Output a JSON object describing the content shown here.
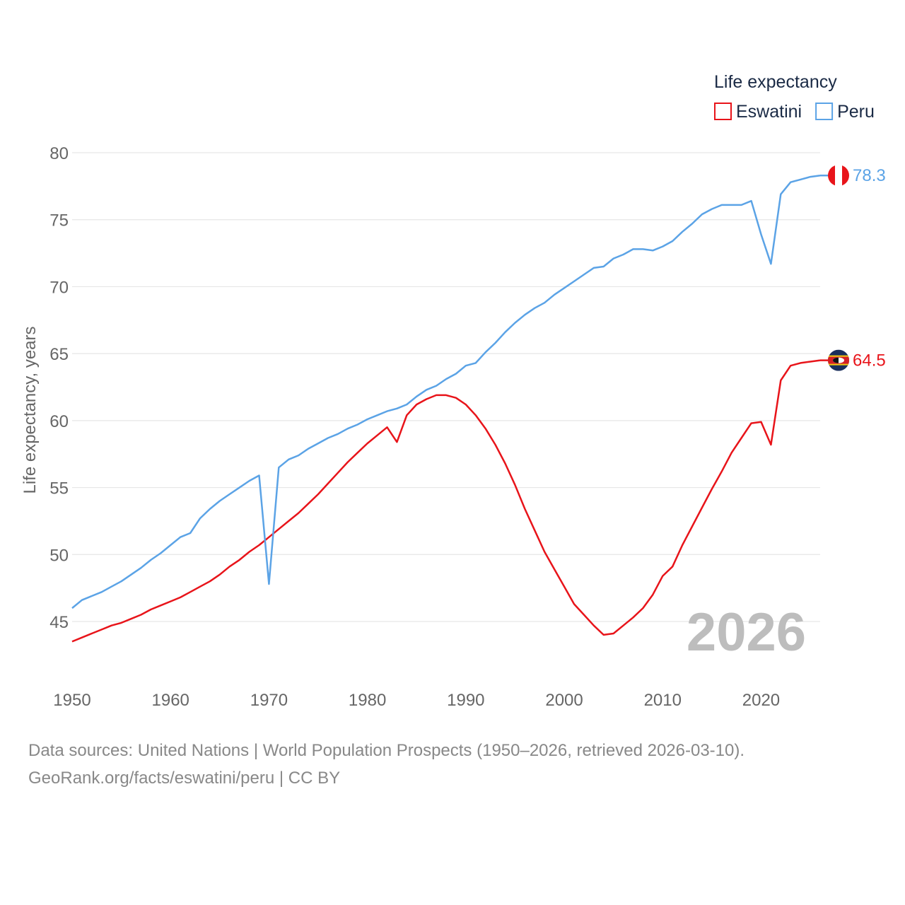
{
  "chart_data": {
    "type": "line",
    "legend_title": "Life expectancy",
    "ylabel": "Life expectancy, years",
    "xlabel": "",
    "ylim": [
      42,
      82
    ],
    "xlim": [
      1950,
      2026
    ],
    "y_ticks": [
      45,
      50,
      55,
      60,
      65,
      70,
      75,
      80
    ],
    "x_ticks": [
      1950,
      1960,
      1970,
      1980,
      1990,
      2000,
      2010,
      2020
    ],
    "grid": true,
    "legend_position": "top-right",
    "year_watermark": "2026",
    "x": [
      1950,
      1951,
      1952,
      1953,
      1954,
      1955,
      1956,
      1957,
      1958,
      1959,
      1960,
      1961,
      1962,
      1963,
      1964,
      1965,
      1966,
      1967,
      1968,
      1969,
      1970,
      1971,
      1972,
      1973,
      1974,
      1975,
      1976,
      1977,
      1978,
      1979,
      1980,
      1981,
      1982,
      1983,
      1984,
      1985,
      1986,
      1987,
      1988,
      1989,
      1990,
      1991,
      1992,
      1993,
      1994,
      1995,
      1996,
      1997,
      1998,
      1999,
      2000,
      2001,
      2002,
      2003,
      2004,
      2005,
      2006,
      2007,
      2008,
      2009,
      2010,
      2011,
      2012,
      2013,
      2014,
      2015,
      2016,
      2017,
      2018,
      2019,
      2020,
      2021,
      2022,
      2023,
      2024,
      2025,
      2026
    ],
    "series": [
      {
        "name": "Eswatini",
        "color": "#e8141a",
        "end_label": "64.5",
        "flag": "eswatini-flag-icon",
        "values": [
          43.5,
          43.8,
          44.1,
          44.4,
          44.7,
          44.9,
          45.2,
          45.5,
          45.9,
          46.2,
          46.5,
          46.8,
          47.2,
          47.6,
          48.0,
          48.5,
          49.1,
          49.6,
          50.2,
          50.7,
          51.3,
          51.9,
          52.5,
          53.1,
          53.8,
          54.5,
          55.3,
          56.1,
          56.9,
          57.6,
          58.3,
          58.9,
          59.5,
          58.4,
          60.4,
          61.2,
          61.6,
          61.9,
          61.9,
          61.7,
          61.2,
          60.4,
          59.4,
          58.2,
          56.8,
          55.2,
          53.4,
          51.8,
          50.2,
          48.9,
          47.6,
          46.3,
          45.5,
          44.7,
          44.0,
          44.1,
          44.7,
          45.3,
          46.0,
          47.0,
          48.4,
          49.1,
          50.7,
          52.1,
          53.5,
          54.9,
          56.2,
          57.6,
          58.7,
          59.8,
          59.9,
          58.2,
          63.0,
          64.1,
          64.3,
          64.4,
          64.5
        ]
      },
      {
        "name": "Peru",
        "color": "#5ba3e6",
        "end_label": "78.3",
        "flag": "peru-flag-icon",
        "values": [
          46.0,
          46.6,
          46.9,
          47.2,
          47.6,
          48.0,
          48.5,
          49.0,
          49.6,
          50.1,
          50.7,
          51.3,
          51.6,
          52.7,
          53.4,
          54.0,
          54.5,
          55.0,
          55.5,
          55.9,
          47.8,
          56.5,
          57.1,
          57.4,
          57.9,
          58.3,
          58.7,
          59.0,
          59.4,
          59.7,
          60.1,
          60.4,
          60.7,
          60.9,
          61.2,
          61.8,
          62.3,
          62.6,
          63.1,
          63.5,
          64.1,
          64.3,
          65.1,
          65.8,
          66.6,
          67.3,
          67.9,
          68.4,
          68.8,
          69.4,
          69.9,
          70.4,
          70.9,
          71.4,
          71.5,
          72.1,
          72.4,
          72.8,
          72.8,
          72.7,
          73.0,
          73.4,
          74.1,
          74.7,
          75.4,
          75.8,
          76.1,
          76.1,
          76.1,
          76.4,
          73.9,
          71.7,
          76.9,
          77.8,
          78.0,
          78.2,
          78.3
        ]
      }
    ]
  },
  "footer": {
    "line1": "Data sources: United Nations | World Population Prospects (1950–2026, retrieved 2026-03-10).",
    "line2": "GeoRank.org/facts/eswatini/peru | CC BY"
  }
}
